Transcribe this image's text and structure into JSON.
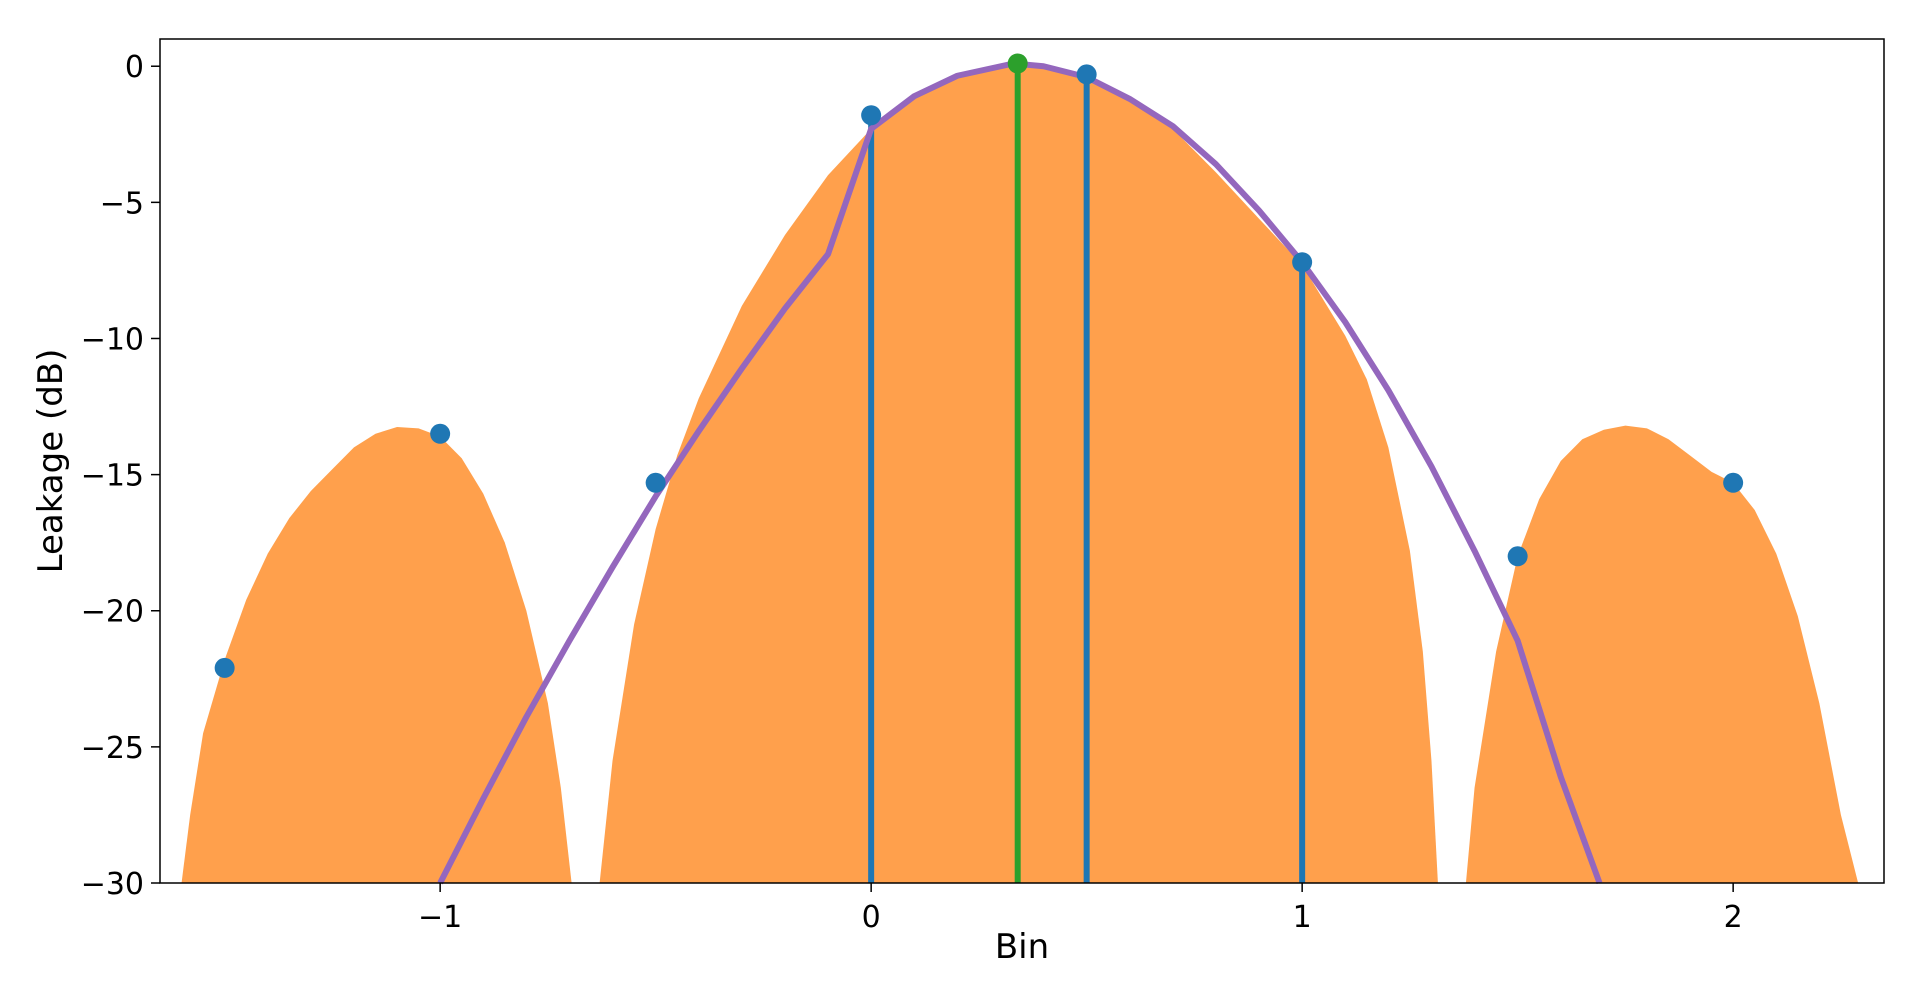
{
  "chart_data": {
    "type": "line",
    "title": "",
    "xlabel": "Bin",
    "ylabel": "Leakage (dB)",
    "xlim": [
      -1.65,
      2.35
    ],
    "ylim": [
      -30,
      1
    ],
    "grid": false,
    "legend": "none",
    "x_ticks": [
      {
        "value": -1,
        "label": "−1"
      },
      {
        "value": 0,
        "label": "0"
      },
      {
        "value": 1,
        "label": "1"
      },
      {
        "value": 2,
        "label": "2"
      }
    ],
    "y_ticks": [
      {
        "value": 0,
        "label": "0"
      },
      {
        "value": -5,
        "label": "−5"
      },
      {
        "value": -10,
        "label": "−10"
      },
      {
        "value": -15,
        "label": "−15"
      },
      {
        "value": -20,
        "label": "−20"
      },
      {
        "value": -25,
        "label": "−25"
      },
      {
        "value": -30,
        "label": "−30"
      }
    ],
    "series": [
      {
        "kind": "area",
        "description": "window spectrum magnitude, main lobe and side lobes",
        "color": "#ffa04c",
        "points": [
          [
            -1.6,
            -30
          ],
          [
            -1.58,
            -27.5
          ],
          [
            -1.55,
            -24.5
          ],
          [
            -1.5,
            -21.8
          ],
          [
            -1.45,
            -19.6
          ],
          [
            -1.4,
            -17.9
          ],
          [
            -1.35,
            -16.6
          ],
          [
            -1.3,
            -15.6
          ],
          [
            -1.25,
            -14.8
          ],
          [
            -1.2,
            -14.0
          ],
          [
            -1.15,
            -13.5
          ],
          [
            -1.1,
            -13.25
          ],
          [
            -1.05,
            -13.3
          ],
          [
            -1.0,
            -13.6
          ],
          [
            -0.95,
            -14.4
          ],
          [
            -0.9,
            -15.7
          ],
          [
            -0.85,
            -17.5
          ],
          [
            -0.8,
            -20.0
          ],
          [
            -0.75,
            -23.4
          ],
          [
            -0.72,
            -26.5
          ],
          [
            -0.695,
            -30
          ]
        ]
      },
      {
        "kind": "area",
        "color": "#ffa04c",
        "points": [
          [
            -0.63,
            -30
          ],
          [
            -0.6,
            -25.5
          ],
          [
            -0.55,
            -20.5
          ],
          [
            -0.5,
            -17.0
          ],
          [
            -0.45,
            -14.3
          ],
          [
            -0.4,
            -12.2
          ],
          [
            -0.3,
            -8.8
          ],
          [
            -0.2,
            -6.2
          ],
          [
            -0.1,
            -4.0
          ],
          [
            0.0,
            -2.3
          ],
          [
            0.1,
            -1.0
          ],
          [
            0.2,
            -0.3
          ],
          [
            0.3,
            0.0
          ],
          [
            0.4,
            0.0
          ],
          [
            0.5,
            -0.3
          ],
          [
            0.6,
            -1.1
          ],
          [
            0.7,
            -2.3
          ],
          [
            0.8,
            -3.9
          ],
          [
            0.9,
            -5.6
          ],
          [
            1.0,
            -7.3
          ],
          [
            1.1,
            -9.9
          ],
          [
            1.15,
            -11.5
          ],
          [
            1.2,
            -14.0
          ],
          [
            1.25,
            -17.8
          ],
          [
            1.28,
            -21.5
          ],
          [
            1.3,
            -25.5
          ],
          [
            1.315,
            -30
          ]
        ]
      },
      {
        "kind": "area",
        "color": "#ffa04c",
        "points": [
          [
            1.38,
            -30
          ],
          [
            1.4,
            -26.5
          ],
          [
            1.45,
            -21.5
          ],
          [
            1.5,
            -18.0
          ],
          [
            1.55,
            -15.9
          ],
          [
            1.6,
            -14.5
          ],
          [
            1.65,
            -13.7
          ],
          [
            1.7,
            -13.35
          ],
          [
            1.75,
            -13.2
          ],
          [
            1.8,
            -13.3
          ],
          [
            1.85,
            -13.7
          ],
          [
            1.9,
            -14.3
          ],
          [
            1.95,
            -14.9
          ],
          [
            2.0,
            -15.3
          ],
          [
            2.05,
            -16.3
          ],
          [
            2.1,
            -17.9
          ],
          [
            2.15,
            -20.2
          ],
          [
            2.2,
            -23.4
          ],
          [
            2.25,
            -27.5
          ],
          [
            2.29,
            -30
          ]
        ]
      },
      {
        "kind": "line",
        "description": "fitted parabola",
        "color": "#9467bd",
        "points": [
          [
            -1.0,
            -30
          ],
          [
            -0.9,
            -26.9
          ],
          [
            -0.8,
            -23.9
          ],
          [
            -0.7,
            -21.1
          ],
          [
            -0.6,
            -18.4
          ],
          [
            -0.5,
            -15.8
          ],
          [
            -0.4,
            -13.4
          ],
          [
            -0.3,
            -11.1
          ],
          [
            -0.2,
            -8.9
          ],
          [
            -0.1,
            -6.9
          ],
          [
            0.0,
            -2.3
          ],
          [
            0.1,
            -1.1
          ],
          [
            0.2,
            -0.35
          ],
          [
            0.33,
            0.1
          ],
          [
            0.4,
            0.0
          ],
          [
            0.5,
            -0.4
          ],
          [
            0.6,
            -1.2
          ],
          [
            0.7,
            -2.2
          ],
          [
            0.8,
            -3.6
          ],
          [
            0.9,
            -5.3
          ],
          [
            1.0,
            -7.2
          ],
          [
            1.1,
            -9.4
          ],
          [
            1.2,
            -11.9
          ],
          [
            1.3,
            -14.7
          ],
          [
            1.4,
            -17.8
          ],
          [
            1.5,
            -21.1
          ],
          [
            1.6,
            -26.1
          ],
          [
            1.69,
            -30
          ]
        ]
      }
    ],
    "sample_points": {
      "color": "#1f77b4",
      "points": [
        [
          -1.5,
          -22.1
        ],
        [
          -1.0,
          -13.5
        ],
        [
          -0.5,
          -15.3
        ],
        [
          0.0,
          -1.8
        ],
        [
          0.5,
          -0.3
        ],
        [
          1.0,
          -7.2
        ],
        [
          1.5,
          -18.0
        ],
        [
          2.0,
          -15.3
        ]
      ],
      "stems_at": [
        0.0,
        0.5,
        1.0
      ]
    },
    "peak": {
      "color": "#2ca02c",
      "x": 0.34,
      "y": 0.1
    },
    "colors": {
      "area": "#ffa04c",
      "samples": "#1f77b4",
      "fit": "#9467bd",
      "peak": "#2ca02c"
    }
  }
}
